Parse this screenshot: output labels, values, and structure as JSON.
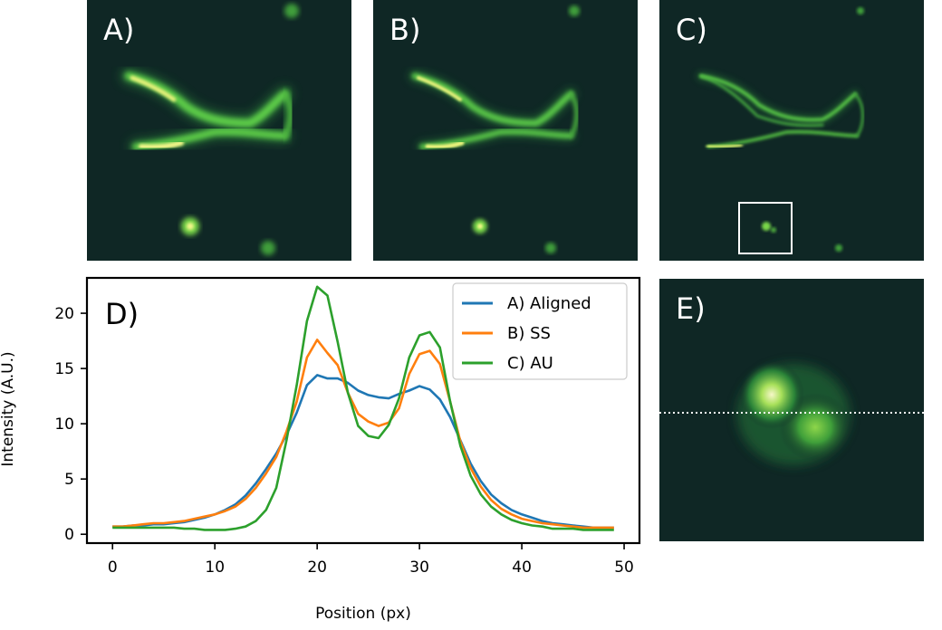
{
  "panels": {
    "a": {
      "label": "A)"
    },
    "b": {
      "label": "B)"
    },
    "c": {
      "label": "C)"
    },
    "e": {
      "label": "E)"
    }
  },
  "chart_data": {
    "type": "line",
    "panel_label": "D)",
    "title": "",
    "xlabel": "Position (px)",
    "ylabel": "Intensity (A.U.)",
    "xlim": [
      -2.5,
      51.5
    ],
    "ylim": [
      -0.8,
      23.2
    ],
    "xticks": [
      0,
      10,
      20,
      30,
      40,
      50
    ],
    "yticks": [
      0,
      5,
      10,
      15,
      20
    ],
    "legend_position": "top-right",
    "x": [
      0,
      1,
      2,
      3,
      4,
      5,
      6,
      7,
      8,
      9,
      10,
      11,
      12,
      13,
      14,
      15,
      16,
      17,
      18,
      19,
      20,
      21,
      22,
      23,
      24,
      25,
      26,
      27,
      28,
      29,
      30,
      31,
      32,
      33,
      34,
      35,
      36,
      37,
      38,
      39,
      40,
      41,
      42,
      43,
      44,
      45,
      46,
      47,
      48,
      49
    ],
    "series": [
      {
        "name": "A) Aligned",
        "color": "#1f77b4",
        "values": [
          0.7,
          0.7,
          0.8,
          0.8,
          0.9,
          0.9,
          1.0,
          1.1,
          1.3,
          1.5,
          1.8,
          2.2,
          2.7,
          3.5,
          4.6,
          5.9,
          7.3,
          9.0,
          11.0,
          13.5,
          14.4,
          14.1,
          14.1,
          13.7,
          13.0,
          12.6,
          12.4,
          12.3,
          12.7,
          13.0,
          13.4,
          13.1,
          12.2,
          10.6,
          8.5,
          6.4,
          4.8,
          3.6,
          2.8,
          2.2,
          1.8,
          1.5,
          1.2,
          1.0,
          0.9,
          0.8,
          0.7,
          0.6,
          0.6,
          0.6
        ]
      },
      {
        "name": "B) SS",
        "color": "#ff7f0e",
        "values": [
          0.7,
          0.7,
          0.8,
          0.9,
          1.0,
          1.0,
          1.1,
          1.2,
          1.4,
          1.6,
          1.8,
          2.1,
          2.5,
          3.2,
          4.2,
          5.5,
          7.0,
          9.3,
          12.0,
          16.0,
          17.6,
          16.4,
          15.3,
          12.8,
          10.9,
          10.2,
          9.8,
          10.1,
          11.4,
          14.5,
          16.3,
          16.6,
          15.4,
          12.0,
          8.4,
          6.0,
          4.3,
          3.1,
          2.3,
          1.8,
          1.4,
          1.2,
          1.0,
          0.9,
          0.8,
          0.7,
          0.6,
          0.6,
          0.6,
          0.6
        ]
      },
      {
        "name": "C) AU",
        "color": "#2ca02c",
        "values": [
          0.6,
          0.6,
          0.6,
          0.6,
          0.6,
          0.6,
          0.6,
          0.5,
          0.5,
          0.4,
          0.4,
          0.4,
          0.5,
          0.7,
          1.2,
          2.2,
          4.2,
          8.5,
          13.5,
          19.3,
          22.4,
          21.6,
          17.4,
          12.8,
          9.8,
          8.9,
          8.7,
          9.9,
          12.3,
          16.0,
          18.0,
          18.3,
          16.9,
          12.0,
          8.0,
          5.3,
          3.6,
          2.5,
          1.8,
          1.3,
          1.0,
          0.8,
          0.7,
          0.5,
          0.5,
          0.5,
          0.4,
          0.4,
          0.4,
          0.4
        ]
      }
    ]
  }
}
